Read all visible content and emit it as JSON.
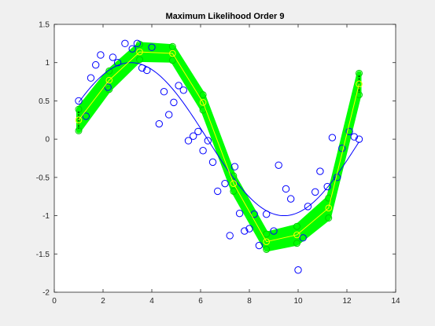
{
  "chart_data": {
    "type": "scatter",
    "title": "Maximum Likelihood Order 9",
    "xlabel": "",
    "ylabel": "",
    "xlim": [
      0,
      14
    ],
    "ylim": [
      -2,
      1.5
    ],
    "xticks": [
      "0",
      "2",
      "4",
      "6",
      "8",
      "10",
      "12",
      "14"
    ],
    "yticks": [
      "-2",
      "-1.5",
      "-1",
      "-0.5",
      "0",
      "0.5",
      "1",
      "1.5"
    ],
    "grid": false,
    "colors": {
      "data_points": "#0000ff",
      "true_curve": "#0000ff",
      "band": "#00ff00",
      "fit_line": "#ffff00",
      "fit_markers": "#ffff00",
      "band_edges": "#00cc00",
      "end_bars": "#000000"
    },
    "series": [
      {
        "role": "observed-points",
        "x": [
          1.0,
          1.3,
          1.5,
          1.7,
          1.9,
          2.2,
          2.4,
          2.6,
          2.9,
          3.2,
          3.4,
          3.6,
          3.8,
          4.0,
          4.3,
          4.5,
          4.7,
          4.9,
          5.1,
          5.3,
          5.5,
          5.7,
          5.9,
          6.1,
          6.3,
          6.5,
          6.7,
          7.0,
          7.2,
          7.4,
          7.6,
          7.8,
          8.0,
          8.2,
          8.4,
          8.7,
          9.0,
          9.2,
          9.5,
          9.7,
          10.0,
          10.2,
          10.4,
          10.7,
          10.9,
          11.2,
          11.4,
          11.6,
          11.8,
          12.1,
          12.3,
          12.5
        ],
        "y": [
          0.5,
          0.3,
          0.8,
          0.97,
          1.1,
          0.68,
          1.07,
          1.0,
          1.25,
          1.18,
          1.25,
          0.93,
          0.9,
          1.2,
          0.2,
          0.62,
          0.32,
          0.48,
          0.7,
          0.64,
          -0.02,
          0.04,
          0.1,
          -0.15,
          -0.02,
          -0.3,
          -0.68,
          -0.58,
          -1.26,
          -0.36,
          -0.97,
          -1.2,
          -1.17,
          -0.98,
          -1.39,
          -0.98,
          -1.2,
          -0.34,
          -0.65,
          -0.78,
          -1.71,
          -1.29,
          -0.88,
          -0.69,
          -0.42,
          -0.62,
          0.02,
          -0.5,
          -0.12,
          0.1,
          0.03,
          0.0
        ]
      },
      {
        "role": "true-function",
        "curve": "sin",
        "x": [
          1.0,
          12.5
        ]
      },
      {
        "role": "fitted-order-9",
        "x": [
          1.0,
          2.25,
          3.5,
          4.85,
          6.1,
          7.35,
          8.7,
          9.95,
          11.25,
          12.5
        ],
        "y": [
          0.25,
          0.77,
          1.14,
          1.12,
          0.48,
          -0.58,
          -1.34,
          -1.25,
          -0.9,
          0.72
        ],
        "band_halfwidth": [
          0.14,
          0.12,
          0.1,
          0.09,
          0.1,
          0.1,
          0.1,
          0.11,
          0.13,
          0.14
        ]
      }
    ]
  }
}
